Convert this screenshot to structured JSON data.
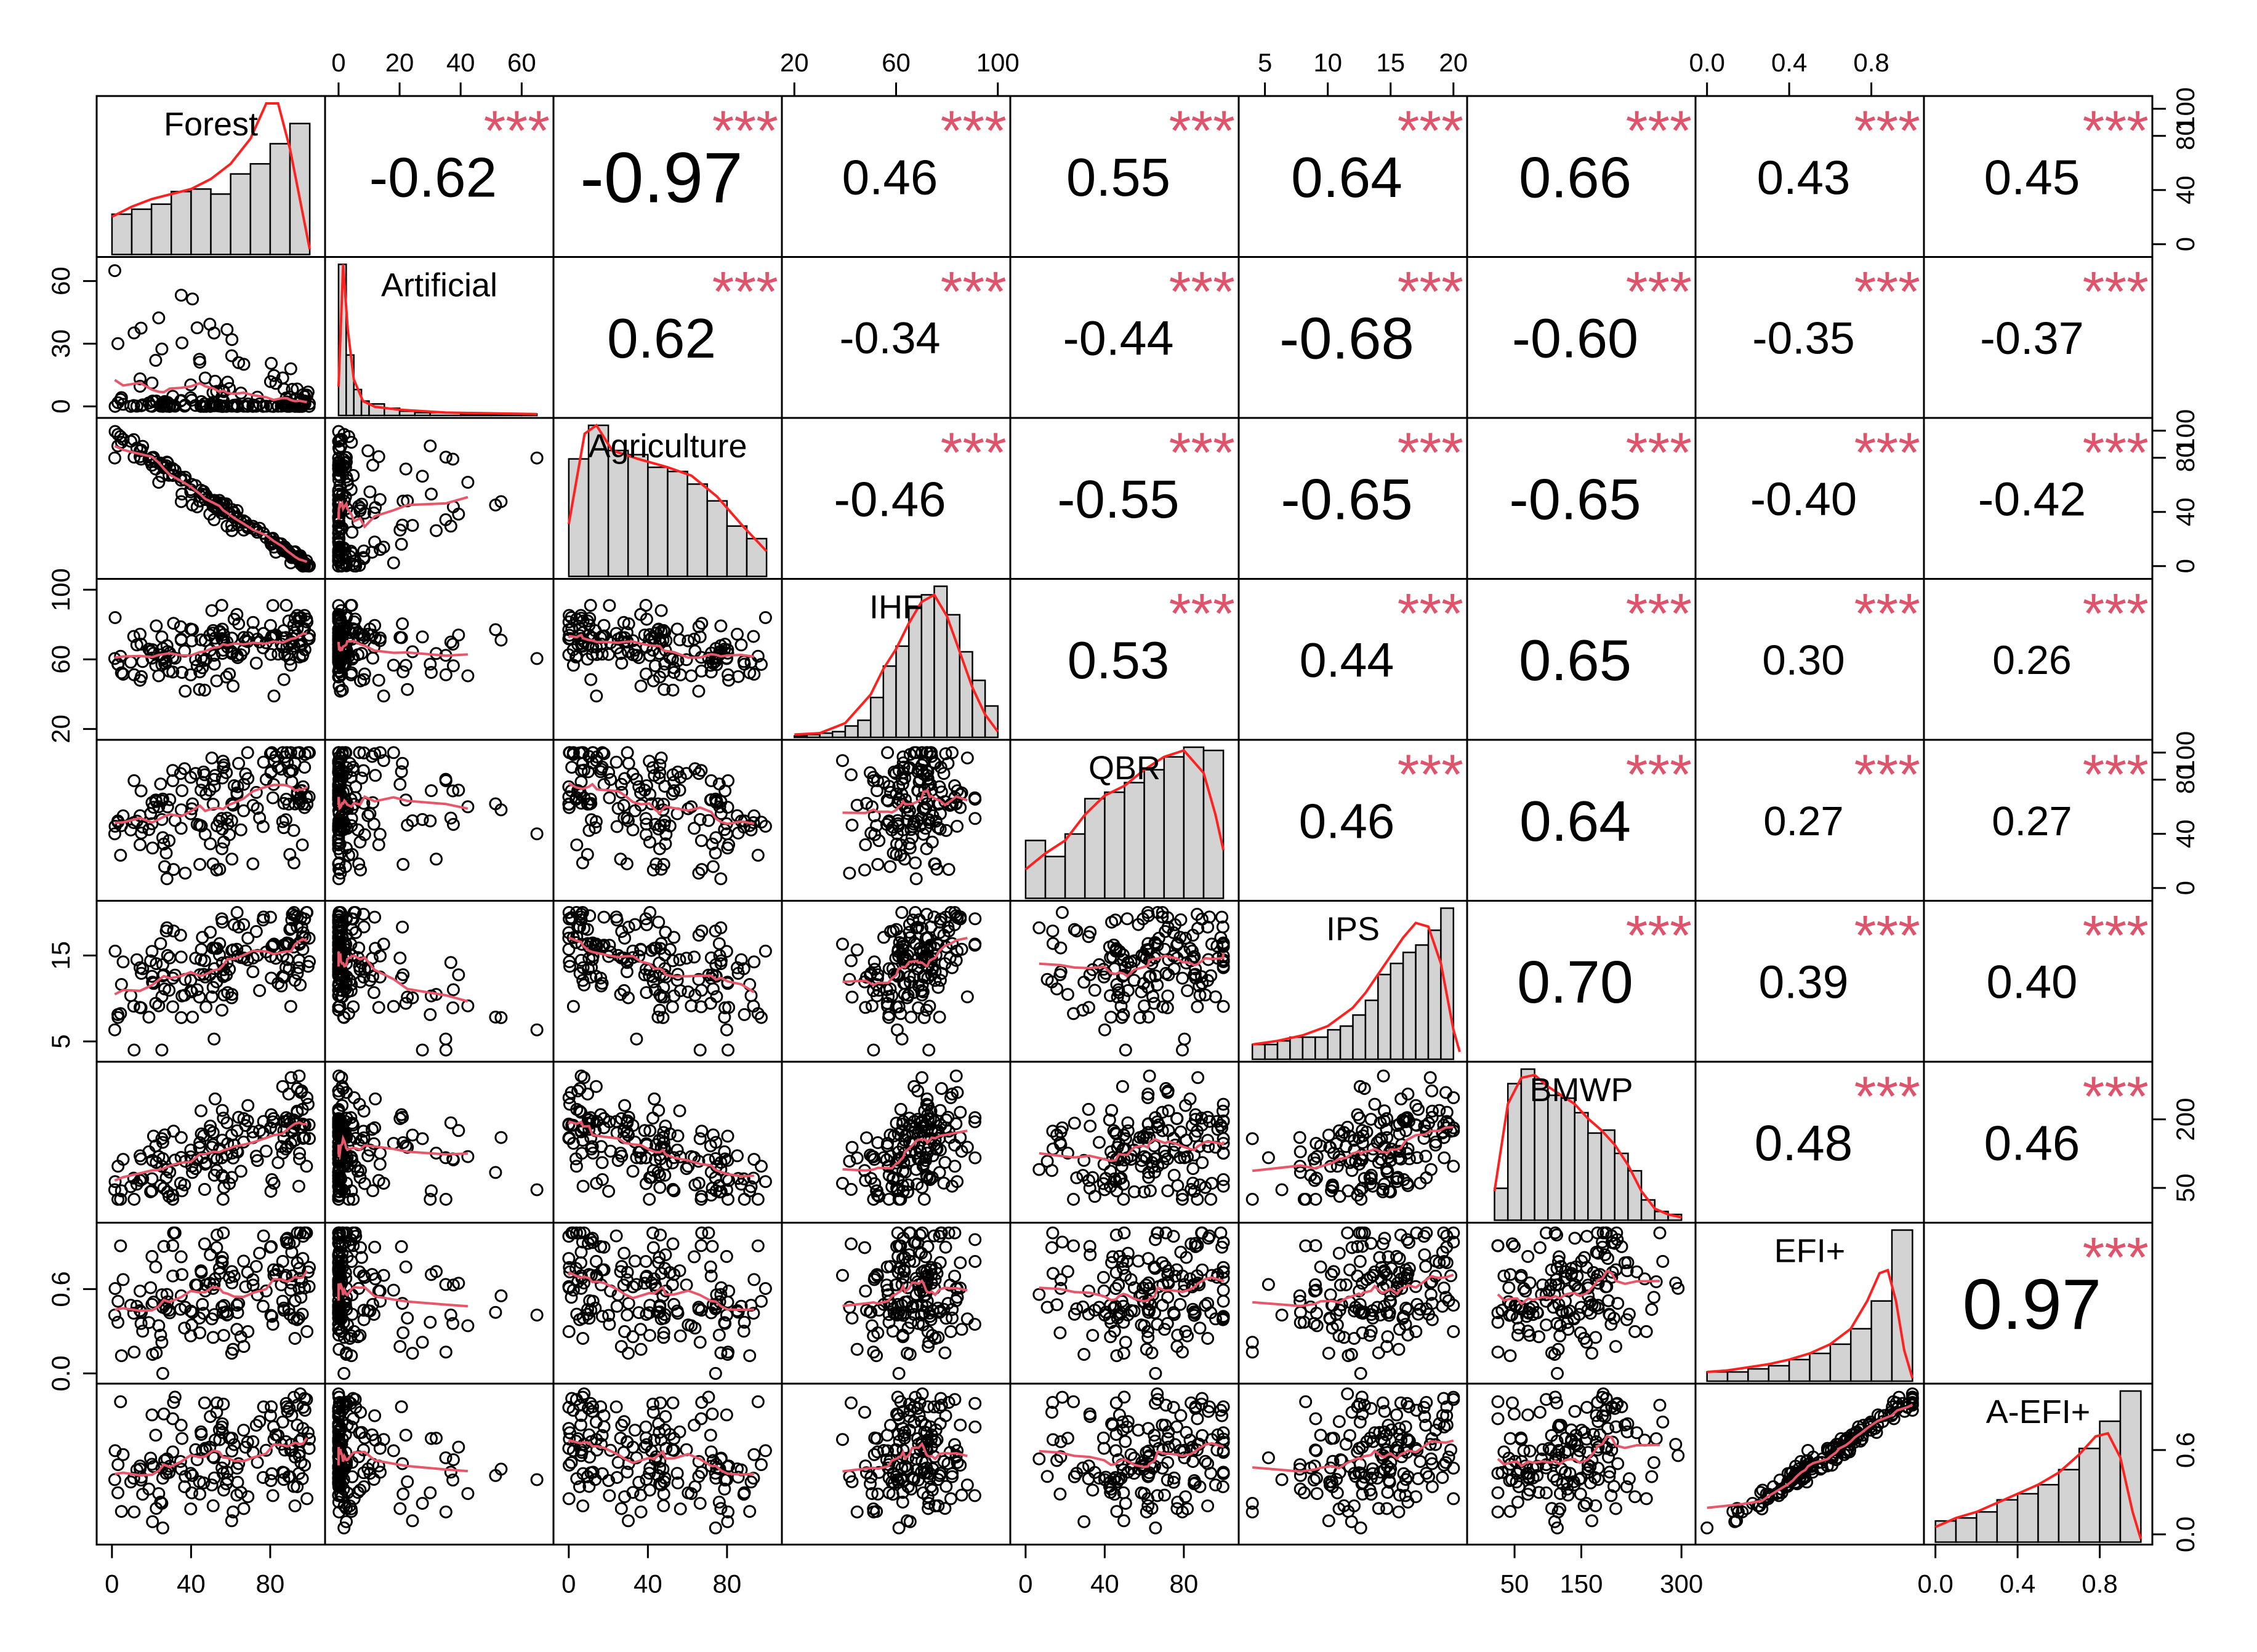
{
  "chart_data": {
    "type": "scatter-matrix",
    "title": "",
    "colors": {
      "smooth": "#e8566a",
      "density": "#ff2020",
      "stars": "#df536b",
      "hist_fill": "#d3d3d3",
      "point": "#000000"
    },
    "variables": [
      {
        "name": "Forest",
        "range": [
          -4,
          104
        ],
        "ticks": [
          0,
          40,
          80
        ],
        "tick_labels": [
          "0",
          "40",
          "80"
        ]
      },
      {
        "name": "Artificial",
        "range": [
          -2,
          68
        ],
        "ticks": [
          0,
          20,
          40,
          60
        ],
        "tick_labels": [
          "0",
          "20",
          "40",
          "60"
        ]
      },
      {
        "name": "Agriculture",
        "range": [
          -4,
          104
        ],
        "ticks": [
          0,
          40,
          80,
          100
        ],
        "tick_labels": [
          "0",
          "40",
          "80",
          "100"
        ]
      },
      {
        "name": "IHF",
        "range": [
          18,
          102
        ],
        "ticks": [
          20,
          60,
          100
        ],
        "tick_labels": [
          "20",
          "60",
          "100"
        ]
      },
      {
        "name": "QBR",
        "range": [
          -4,
          104
        ],
        "ticks": [
          0,
          40,
          80,
          100
        ],
        "tick_labels": [
          "0",
          "40",
          "80",
          "100"
        ]
      },
      {
        "name": "IPS",
        "range": [
          3.5,
          20.5
        ],
        "ticks": [
          5,
          10,
          15,
          20
        ],
        "tick_labels": [
          "5",
          "10",
          "15",
          "20"
        ]
      },
      {
        "name": "BMWP",
        "range": [
          -10,
          310
        ],
        "ticks": [
          50,
          150,
          300
        ],
        "tick_labels": [
          "50",
          "150",
          "300"
        ]
      },
      {
        "name": "EFI+",
        "range": [
          -0.02,
          1.02
        ],
        "ticks": [
          0.0,
          0.4,
          0.6,
          0.8
        ],
        "tick_labels": [
          "0.0",
          "0.4",
          "0.6",
          "0.8"
        ]
      },
      {
        "name": "A-EFI+",
        "range": [
          -0.02,
          1.02
        ],
        "ticks": [
          0.0,
          0.4,
          0.6,
          0.8
        ],
        "tick_labels": [
          "0.0",
          "0.4",
          "0.6",
          "0.8"
        ]
      }
    ],
    "axes": {
      "top": [
        {
          "var": 1,
          "ticks": [
            0,
            20,
            40,
            60
          ]
        },
        {
          "var": 3,
          "ticks": [
            20,
            60,
            100
          ]
        },
        {
          "var": 5,
          "ticks": [
            5,
            10,
            15,
            20
          ]
        },
        {
          "var": 7,
          "ticks": [
            0.0,
            0.4,
            0.8
          ]
        }
      ],
      "bottom": [
        {
          "var": 0,
          "ticks": [
            0,
            40,
            80
          ]
        },
        {
          "var": 2,
          "ticks": [
            0,
            40,
            80
          ]
        },
        {
          "var": 4,
          "ticks": [
            0,
            40,
            80
          ]
        },
        {
          "var": 6,
          "ticks": [
            50,
            150,
            300
          ]
        },
        {
          "var": 8,
          "ticks": [
            0.0,
            0.4,
            0.8
          ]
        }
      ],
      "left": [
        {
          "var": 1,
          "ticks": [
            0,
            30,
            60
          ]
        },
        {
          "var": 3,
          "ticks": [
            20,
            60,
            100
          ]
        },
        {
          "var": 5,
          "ticks": [
            5,
            15
          ]
        },
        {
          "var": 7,
          "ticks": [
            0.0,
            0.6
          ]
        }
      ],
      "right": [
        {
          "var": 0,
          "ticks": [
            0,
            40,
            80,
            100
          ]
        },
        {
          "var": 2,
          "ticks": [
            0,
            40,
            80,
            100
          ]
        },
        {
          "var": 4,
          "ticks": [
            0,
            40,
            80,
            100
          ]
        },
        {
          "var": 6,
          "ticks": [
            50,
            200
          ]
        },
        {
          "var": 8,
          "ticks": [
            0.0,
            0.6
          ]
        }
      ]
    },
    "correlations": [
      {
        "row": 0,
        "col": 1,
        "r": "-0.62",
        "stars": "***"
      },
      {
        "row": 0,
        "col": 2,
        "r": "-0.97",
        "stars": "***"
      },
      {
        "row": 0,
        "col": 3,
        "r": "0.46",
        "stars": "***"
      },
      {
        "row": 0,
        "col": 4,
        "r": "0.55",
        "stars": "***"
      },
      {
        "row": 0,
        "col": 5,
        "r": "0.64",
        "stars": "***"
      },
      {
        "row": 0,
        "col": 6,
        "r": "0.66",
        "stars": "***"
      },
      {
        "row": 0,
        "col": 7,
        "r": "0.43",
        "stars": "***"
      },
      {
        "row": 0,
        "col": 8,
        "r": "0.45",
        "stars": "***"
      },
      {
        "row": 1,
        "col": 2,
        "r": "0.62",
        "stars": "***"
      },
      {
        "row": 1,
        "col": 3,
        "r": "-0.34",
        "stars": "***"
      },
      {
        "row": 1,
        "col": 4,
        "r": "-0.44",
        "stars": "***"
      },
      {
        "row": 1,
        "col": 5,
        "r": "-0.68",
        "stars": "***"
      },
      {
        "row": 1,
        "col": 6,
        "r": "-0.60",
        "stars": "***"
      },
      {
        "row": 1,
        "col": 7,
        "r": "-0.35",
        "stars": "***"
      },
      {
        "row": 1,
        "col": 8,
        "r": "-0.37",
        "stars": "***"
      },
      {
        "row": 2,
        "col": 3,
        "r": "-0.46",
        "stars": "***"
      },
      {
        "row": 2,
        "col": 4,
        "r": "-0.55",
        "stars": "***"
      },
      {
        "row": 2,
        "col": 5,
        "r": "-0.65",
        "stars": "***"
      },
      {
        "row": 2,
        "col": 6,
        "r": "-0.65",
        "stars": "***"
      },
      {
        "row": 2,
        "col": 7,
        "r": "-0.40",
        "stars": "***"
      },
      {
        "row": 2,
        "col": 8,
        "r": "-0.42",
        "stars": "***"
      },
      {
        "row": 3,
        "col": 4,
        "r": "0.53",
        "stars": "***"
      },
      {
        "row": 3,
        "col": 5,
        "r": "0.44",
        "stars": "***"
      },
      {
        "row": 3,
        "col": 6,
        "r": "0.65",
        "stars": "***"
      },
      {
        "row": 3,
        "col": 7,
        "r": "0.30",
        "stars": "***"
      },
      {
        "row": 3,
        "col": 8,
        "r": "0.26",
        "stars": "***"
      },
      {
        "row": 4,
        "col": 5,
        "r": "0.46",
        "stars": "***"
      },
      {
        "row": 4,
        "col": 6,
        "r": "0.64",
        "stars": "***"
      },
      {
        "row": 4,
        "col": 7,
        "r": "0.27",
        "stars": "***"
      },
      {
        "row": 4,
        "col": 8,
        "r": "0.27",
        "stars": "***"
      },
      {
        "row": 5,
        "col": 6,
        "r": "0.70",
        "stars": "***"
      },
      {
        "row": 5,
        "col": 7,
        "r": "0.39",
        "stars": "***"
      },
      {
        "row": 5,
        "col": 8,
        "r": "0.40",
        "stars": "***"
      },
      {
        "row": 6,
        "col": 7,
        "r": "0.48",
        "stars": "***"
      },
      {
        "row": 6,
        "col": 8,
        "r": "0.46",
        "stars": "***"
      },
      {
        "row": 7,
        "col": 8,
        "r": "0.97",
        "stars": "***"
      }
    ],
    "histograms": [
      {
        "var": 0,
        "bins": [
          0,
          10,
          20,
          30,
          40,
          50,
          60,
          70,
          80,
          90,
          100
        ],
        "counts": [
          16,
          18,
          20,
          25,
          26,
          24,
          32,
          36,
          44,
          52
        ],
        "density": [
          [
            0,
            15
          ],
          [
            10,
            19
          ],
          [
            20,
            22
          ],
          [
            30,
            24
          ],
          [
            40,
            26
          ],
          [
            50,
            30
          ],
          [
            60,
            36
          ],
          [
            70,
            46
          ],
          [
            78,
            60
          ],
          [
            84,
            60
          ],
          [
            90,
            42
          ],
          [
            96,
            18
          ],
          [
            100,
            2
          ]
        ]
      },
      {
        "var": 1,
        "bins": [
          0,
          2.5,
          5,
          7.5,
          10,
          15,
          20,
          25,
          30,
          40,
          50,
          60,
          65
        ],
        "counts": [
          105,
          42,
          18,
          10,
          8,
          5,
          3,
          2,
          2,
          1,
          1,
          1
        ],
        "density": [
          [
            0,
            20
          ],
          [
            1.5,
            105
          ],
          [
            3,
            60
          ],
          [
            5,
            25
          ],
          [
            8,
            10
          ],
          [
            12,
            6
          ],
          [
            20,
            4
          ],
          [
            35,
            2
          ],
          [
            65,
            1
          ]
        ]
      },
      {
        "var": 2,
        "bins": [
          0,
          10,
          20,
          30,
          40,
          50,
          60,
          70,
          80,
          90,
          100
        ],
        "counts": [
          56,
          72,
          60,
          58,
          52,
          50,
          44,
          36,
          24,
          18
        ],
        "density": [
          [
            0,
            25
          ],
          [
            8,
            68
          ],
          [
            14,
            72
          ],
          [
            22,
            60
          ],
          [
            35,
            56
          ],
          [
            50,
            52
          ],
          [
            62,
            48
          ],
          [
            75,
            38
          ],
          [
            88,
            24
          ],
          [
            100,
            12
          ]
        ]
      },
      {
        "var": 3,
        "bins": [
          20,
          25,
          30,
          35,
          40,
          45,
          50,
          55,
          60,
          65,
          70,
          75,
          80,
          85,
          90,
          95,
          100
        ],
        "counts": [
          1,
          2,
          3,
          4,
          8,
          12,
          28,
          50,
          64,
          92,
          100,
          106,
          86,
          60,
          40,
          22
        ],
        "density": [
          [
            20,
            2
          ],
          [
            30,
            3
          ],
          [
            40,
            10
          ],
          [
            50,
            30
          ],
          [
            55,
            48
          ],
          [
            60,
            62
          ],
          [
            65,
            80
          ],
          [
            70,
            95
          ],
          [
            75,
            100
          ],
          [
            80,
            85
          ],
          [
            85,
            60
          ],
          [
            90,
            35
          ],
          [
            95,
            16
          ],
          [
            100,
            4
          ]
        ]
      },
      {
        "var": 4,
        "bins": [
          0,
          10,
          20,
          30,
          40,
          50,
          60,
          70,
          80,
          90,
          100
        ],
        "counts": [
          36,
          26,
          40,
          62,
          66,
          72,
          80,
          88,
          94,
          92
        ],
        "density": [
          [
            0,
            18
          ],
          [
            10,
            28
          ],
          [
            20,
            36
          ],
          [
            30,
            52
          ],
          [
            40,
            64
          ],
          [
            50,
            70
          ],
          [
            60,
            80
          ],
          [
            70,
            88
          ],
          [
            80,
            92
          ],
          [
            90,
            78
          ],
          [
            96,
            52
          ],
          [
            100,
            30
          ]
        ]
      },
      {
        "var": 5,
        "bins": [
          4,
          5,
          6,
          7,
          8,
          9,
          10,
          11,
          12,
          13,
          14,
          15,
          16,
          17,
          18,
          19,
          20
        ],
        "counts": [
          8,
          8,
          10,
          12,
          12,
          12,
          16,
          18,
          24,
          32,
          46,
          52,
          58,
          62,
          70,
          82,
          56
        ],
        "density": [
          [
            4,
            8
          ],
          [
            6,
            10
          ],
          [
            8,
            13
          ],
          [
            10,
            18
          ],
          [
            12,
            28
          ],
          [
            13,
            36
          ],
          [
            14,
            46
          ],
          [
            15,
            56
          ],
          [
            16,
            66
          ],
          [
            17,
            74
          ],
          [
            18,
            72
          ],
          [
            19,
            52
          ],
          [
            20,
            16
          ],
          [
            20.5,
            4
          ]
        ]
      },
      {
        "var": 6,
        "bins": [
          20,
          40,
          60,
          80,
          100,
          120,
          140,
          160,
          180,
          200,
          220,
          240,
          260,
          280,
          300
        ],
        "counts": [
          22,
          94,
          104,
          94,
          86,
          84,
          74,
          60,
          62,
          46,
          34,
          14,
          6,
          4
        ],
        "density": [
          [
            20,
            20
          ],
          [
            40,
            80
          ],
          [
            60,
            98
          ],
          [
            80,
            100
          ],
          [
            100,
            92
          ],
          [
            120,
            86
          ],
          [
            140,
            80
          ],
          [
            160,
            70
          ],
          [
            180,
            62
          ],
          [
            200,
            52
          ],
          [
            220,
            38
          ],
          [
            240,
            20
          ],
          [
            260,
            8
          ],
          [
            280,
            4
          ],
          [
            300,
            2
          ]
        ]
      },
      {
        "var": 7,
        "bins": [
          0,
          0.1,
          0.2,
          0.3,
          0.4,
          0.5,
          0.6,
          0.7,
          0.8,
          0.9,
          1.0
        ],
        "counts": [
          6,
          6,
          8,
          10,
          14,
          18,
          24,
          34,
          52,
          98
        ],
        "density": [
          [
            0,
            6
          ],
          [
            0.1,
            7
          ],
          [
            0.2,
            9
          ],
          [
            0.3,
            11
          ],
          [
            0.4,
            14
          ],
          [
            0.5,
            18
          ],
          [
            0.6,
            24
          ],
          [
            0.7,
            34
          ],
          [
            0.78,
            52
          ],
          [
            0.84,
            70
          ],
          [
            0.88,
            72
          ],
          [
            0.92,
            52
          ],
          [
            0.96,
            20
          ],
          [
            1.0,
            2
          ]
        ]
      },
      {
        "var": 8,
        "bins": [
          0,
          0.1,
          0.2,
          0.3,
          0.4,
          0.5,
          0.6,
          0.7,
          0.8,
          0.9,
          1.0
        ],
        "counts": [
          14,
          16,
          20,
          28,
          32,
          38,
          48,
          62,
          80,
          100
        ],
        "density": [
          [
            0,
            10
          ],
          [
            0.1,
            16
          ],
          [
            0.2,
            20
          ],
          [
            0.3,
            26
          ],
          [
            0.4,
            32
          ],
          [
            0.5,
            38
          ],
          [
            0.6,
            46
          ],
          [
            0.7,
            58
          ],
          [
            0.78,
            70
          ],
          [
            0.84,
            72
          ],
          [
            0.9,
            56
          ],
          [
            0.96,
            20
          ],
          [
            1.0,
            2
          ]
        ]
      }
    ]
  }
}
